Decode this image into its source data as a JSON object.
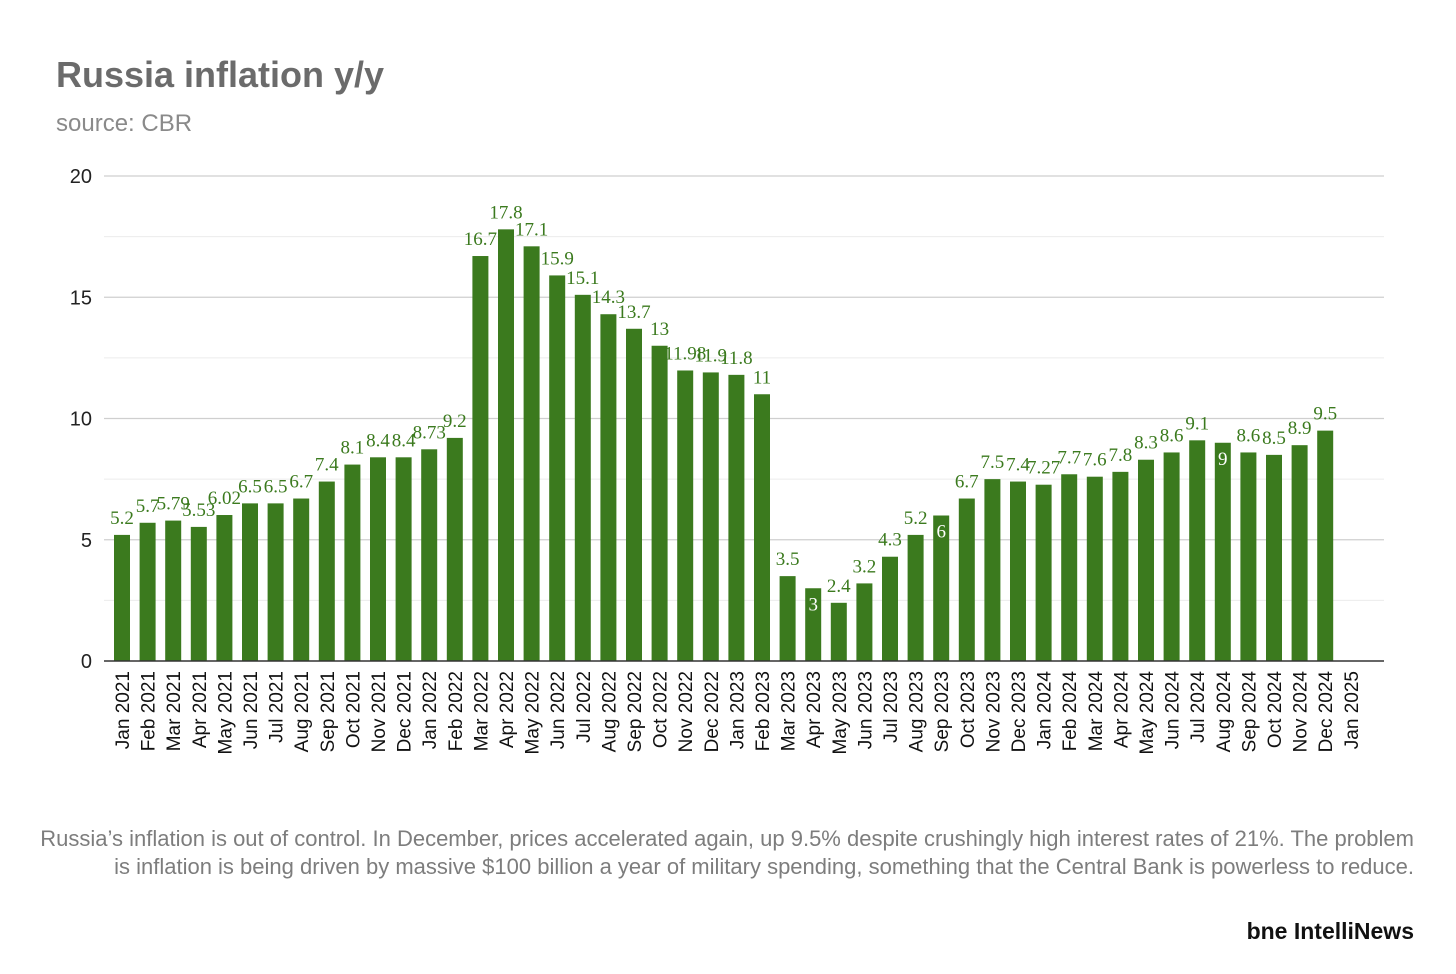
{
  "chart_data": {
    "type": "bar",
    "title": "Russia inflation y/y",
    "subtitle": "source: CBR",
    "xlabel": "",
    "ylabel": "",
    "ylim": [
      0,
      20
    ],
    "yticks": [
      0,
      5,
      10,
      15,
      20
    ],
    "grid": true,
    "bar_color": "#3b7a1e",
    "label_color": "#3b7a1e",
    "categories": [
      "Jan 2021",
      "Feb 2021",
      "Mar 2021",
      "Apr 2021",
      "May 2021",
      "Jun 2021",
      "Jul 2021",
      "Aug 2021",
      "Sep 2021",
      "Oct 2021",
      "Nov 2021",
      "Dec 2021",
      "Jan 2022",
      "Feb 2022",
      "Mar 2022",
      "Apr 2022",
      "May 2022",
      "Jun 2022",
      "Jul 2022",
      "Aug 2022",
      "Sep 2022",
      "Oct 2022",
      "Nov 2022",
      "Dec 2022",
      "Jan 2023",
      "Feb 2023",
      "Mar 2023",
      "Apr 2023",
      "May 2023",
      "Jun 2023",
      "Jul 2023",
      "Aug 2023",
      "Sep 2023",
      "Oct 2023",
      "Nov 2023",
      "Dec 2023",
      "Jan 2024",
      "Feb 2024",
      "Mar 2024",
      "Apr 2024",
      "May 2024",
      "Jun 2024",
      "Jul 2024",
      "Aug 2024",
      "Sep 2024",
      "Oct 2024",
      "Nov 2024",
      "Dec 2024",
      "Jan 2025"
    ],
    "values": [
      5.2,
      5.7,
      5.79,
      5.53,
      6.02,
      6.5,
      6.5,
      6.7,
      7.4,
      8.1,
      8.4,
      8.4,
      8.73,
      9.2,
      16.7,
      17.8,
      17.1,
      15.9,
      15.1,
      14.3,
      13.7,
      13,
      11.98,
      11.9,
      11.8,
      11,
      3.5,
      3,
      2.4,
      3.2,
      4.3,
      5.2,
      6,
      6.7,
      7.5,
      7.4,
      7.27,
      7.7,
      7.6,
      7.8,
      8.3,
      8.6,
      9.1,
      9,
      8.6,
      8.5,
      8.9,
      9.5,
      null
    ],
    "data_labels": [
      "5.2",
      "5.7",
      "5.79",
      "5.53",
      "6.02",
      "6.5",
      "6.5",
      "6.7",
      "7.4",
      "8.1",
      "8.4",
      "8.4",
      "8.73",
      "9.2",
      "16.7",
      "17.8",
      "17.1",
      "15.9",
      "15.1",
      "14.3",
      "13.7",
      "13",
      "11.98",
      "11.9",
      "11.8",
      "11",
      "3.5",
      "3",
      "2.4",
      "3.2",
      "4.3",
      "5.2",
      "6",
      "6.7",
      "7.5",
      "7.4",
      "7.27",
      "7.7",
      "7.6",
      "7.8",
      "8.3",
      "8.6",
      "9.1",
      "9",
      "8.6",
      "8.5",
      "8.9",
      "9.5",
      ""
    ],
    "inside_labels": [
      "Apr 2023",
      "Sep 2023",
      "Aug 2024"
    ]
  },
  "caption": "Russia’s inflation is out of control. In December, prices accelerated again, up 9.5% despite crushingly high interest rates of 21%. The problem is inflation is being driven by massive $100 billion a year of military spending, something that the Central Bank is powerless to reduce.",
  "brand": "bne IntelliNews"
}
